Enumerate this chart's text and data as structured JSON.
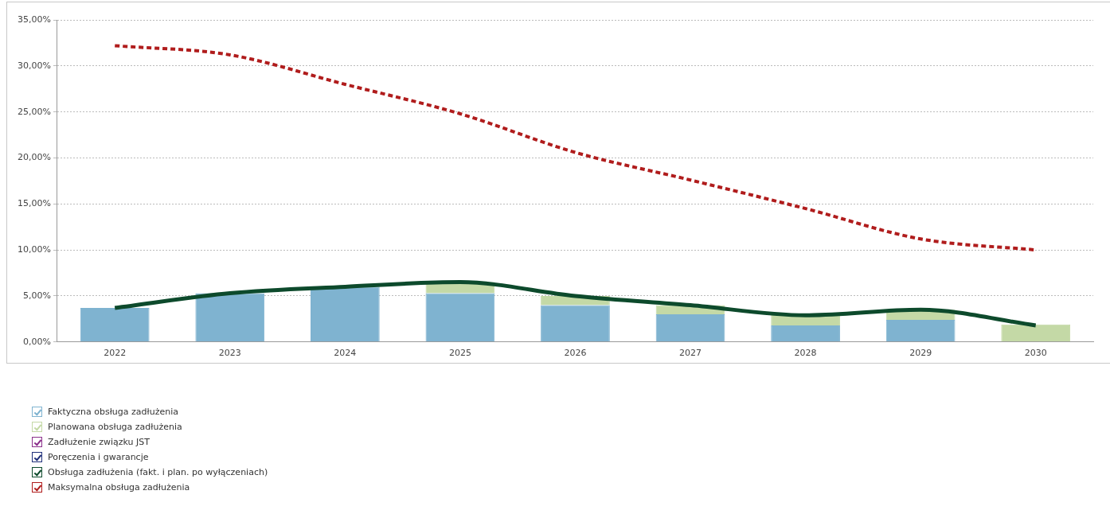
{
  "chart_data": {
    "type": "bar",
    "stacked": true,
    "categories": [
      "2022",
      "2023",
      "2024",
      "2025",
      "2026",
      "2027",
      "2028",
      "2029",
      "2030"
    ],
    "ylim": [
      0,
      35
    ],
    "yticks": [
      {
        "value": 0,
        "label": "0,00%"
      },
      {
        "value": 5,
        "label": "5,00%"
      },
      {
        "value": 10,
        "label": "10,00%"
      },
      {
        "value": 15,
        "label": "15,00%"
      },
      {
        "value": 20,
        "label": "20,00%"
      },
      {
        "value": 25,
        "label": "25,00%"
      },
      {
        "value": 30,
        "label": "30,00%"
      },
      {
        "value": 35,
        "label": "35,00%"
      }
    ],
    "grid": "y",
    "legend": "bottom",
    "marker": "none",
    "series": [
      {
        "name": "Faktyczna obsługa zadłużenia",
        "color": "#7fb3d0",
        "values": [
          3.7,
          5.3,
          6.0,
          5.3,
          4.0,
          3.0,
          1.8,
          2.4,
          null
        ]
      },
      {
        "name": "Planowana obsługa zadłużenia",
        "color": "#c4d9a6",
        "values": [
          null,
          null,
          null,
          1.2,
          1.0,
          1.0,
          1.2,
          1.1,
          1.9
        ]
      },
      {
        "name": "Zadłużenie związku JST",
        "color": "#8b2f8b",
        "values": [
          null,
          null,
          null,
          null,
          null,
          null,
          null,
          null,
          null
        ]
      },
      {
        "name": "Poręczenia i gwarancje",
        "color": "#1f2f7a",
        "values": [
          null,
          null,
          null,
          null,
          null,
          null,
          null,
          null,
          null
        ]
      },
      {
        "name": "Obsługa zadłużenia (fakt. i plan. po wyłączeniach)",
        "type": "line",
        "line_style": "solid",
        "color": "#0d4a2c",
        "values": [
          3.7,
          5.3,
          6.0,
          6.5,
          5.0,
          4.0,
          2.9,
          3.5,
          1.8
        ]
      },
      {
        "name": "Maksymalna obsługa zadłużenia",
        "type": "line",
        "line_style": "dashed",
        "color": "#b01c1c",
        "values": [
          32.2,
          31.2,
          28.0,
          24.8,
          20.6,
          17.6,
          14.5,
          11.2,
          10.0
        ]
      }
    ]
  }
}
